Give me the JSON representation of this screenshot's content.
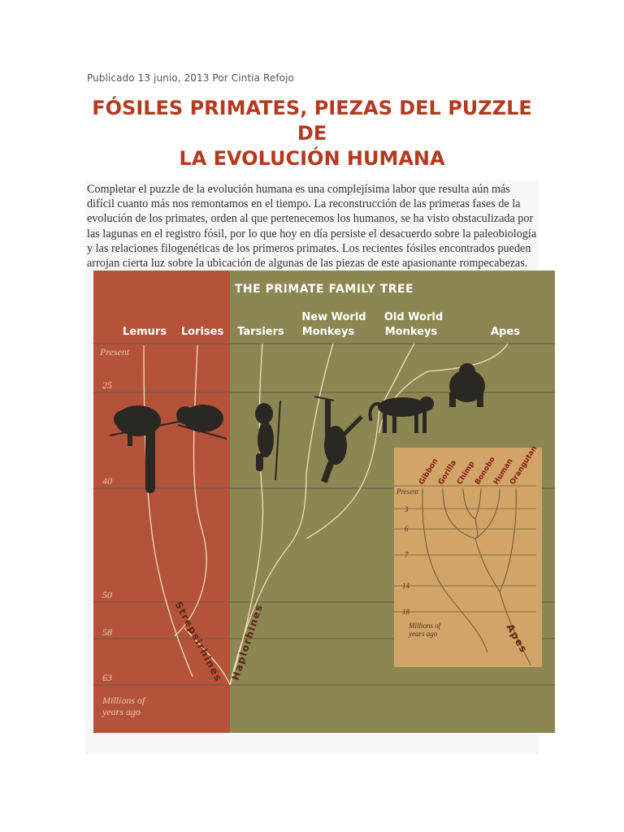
{
  "article": {
    "byline": "Publicado 13 junio, 2013 Por Cintia Refojo",
    "headline_line1": "FÓSILES PRIMATES, PIEZAS DEL PUZZLE DE",
    "headline_line2": "LA EVOLUCIÓN HUMANA",
    "paragraph": "Completar el puzzle de la evolución humana es una complejísima labor que resulta aún más difícil cuanto más nos remontamos en el tiempo. La reconstrucción de las primeras fases de la evolución de los primates, orden al que pertenecemos los humanos, se ha visto obstaculizada por las lagunas en el registro fósil, por lo que hoy en día persiste el desacuerdo sobre la paleobiología y las relaciones filogenéticas de los primeros primates. Los recientes fósiles encontrados pueden arrojan cierta luz sobre la ubicación de algunas de las piezas de este apasionante rompecabezas."
  },
  "figure": {
    "title": "THE PRIMATE FAMILY TREE",
    "colors": {
      "strepsirhine_panel": "#b5533a",
      "haplorhine_panel": "#8c8752",
      "inset_panel": "#d1a468",
      "silhouette": "#2b2824"
    },
    "groups": [
      {
        "key": "lemurs",
        "label_line1": "Lemurs",
        "label_line2": ""
      },
      {
        "key": "lorises",
        "label_line1": "Lorises",
        "label_line2": ""
      },
      {
        "key": "tarsiers",
        "label_line1": "Tarsiers",
        "label_line2": ""
      },
      {
        "key": "nwm",
        "label_line1": "New World",
        "label_line2": "Monkeys"
      },
      {
        "key": "owm",
        "label_line1": "Old World",
        "label_line2": "Monkeys"
      },
      {
        "key": "apes",
        "label_line1": "Apes",
        "label_line2": ""
      }
    ],
    "time_axis": {
      "ticks": [
        "Present",
        "25",
        "40",
        "50",
        "58",
        "63"
      ],
      "unit_line1": "Millions of",
      "unit_line2": "years ago"
    },
    "clades": {
      "strepsirhines": "Strepsirhines",
      "haplorhines": "Haplorhines"
    },
    "icons": [
      "lemur-icon",
      "loris-icon",
      "tarsier-icon",
      "new-world-monkey-icon",
      "old-world-monkey-icon",
      "gorilla-icon"
    ],
    "inset": {
      "species": [
        "Gibbon",
        "Gorilla",
        "Chimp",
        "Bonobo",
        "Human",
        "Orangutan"
      ],
      "ticks": [
        "Present",
        "3",
        "6",
        "7",
        "14",
        "18"
      ],
      "unit_line1": "Millions of",
      "unit_line2": "years ago",
      "clade": "Apes"
    }
  }
}
